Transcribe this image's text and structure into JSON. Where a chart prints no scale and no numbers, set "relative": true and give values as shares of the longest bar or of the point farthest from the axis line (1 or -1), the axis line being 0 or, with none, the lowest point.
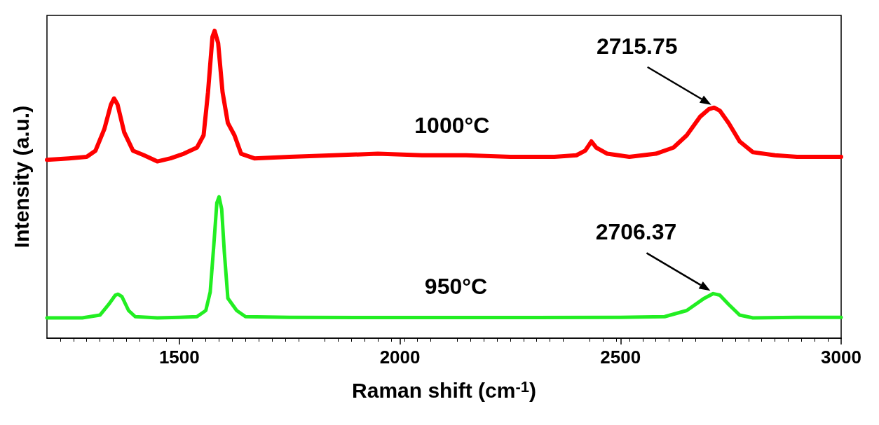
{
  "chart_data": {
    "type": "line",
    "relative": true,
    "xlabel": "Raman shift (cm$^{-1}$)",
    "ylabel": "Intensity (a.u.)",
    "xlim": [
      1200,
      3000
    ],
    "xticks": [
      1500,
      2000,
      2500,
      3000
    ],
    "grid": false,
    "legend": false,
    "marker": "none",
    "line_style": "solid",
    "series": [
      {
        "name": "1000°C",
        "color": "#ff0000",
        "x": [
          1200,
          1250,
          1290,
          1310,
          1330,
          1345,
          1352,
          1360,
          1375,
          1395,
          1420,
          1450,
          1480,
          1510,
          1540,
          1555,
          1565,
          1575,
          1580,
          1588,
          1598,
          1610,
          1625,
          1640,
          1670,
          1750,
          1850,
          1950,
          2050,
          2150,
          2250,
          2350,
          2400,
          2420,
          2434,
          2445,
          2470,
          2520,
          2580,
          2620,
          2650,
          2680,
          2700,
          2712,
          2725,
          2745,
          2770,
          2800,
          2850,
          2900,
          2950,
          3000
        ],
        "values": [
          0.58,
          0.585,
          0.59,
          0.61,
          0.68,
          0.76,
          0.78,
          0.76,
          0.67,
          0.61,
          0.595,
          0.575,
          0.585,
          0.6,
          0.62,
          0.66,
          0.8,
          0.98,
          1.0,
          0.96,
          0.8,
          0.7,
          0.66,
          0.6,
          0.585,
          0.59,
          0.595,
          0.6,
          0.595,
          0.595,
          0.59,
          0.59,
          0.595,
          0.61,
          0.64,
          0.62,
          0.6,
          0.59,
          0.6,
          0.62,
          0.66,
          0.72,
          0.745,
          0.75,
          0.74,
          0.7,
          0.64,
          0.605,
          0.595,
          0.59,
          0.59,
          0.59
        ]
      },
      {
        "name": "950°C",
        "color": "#22ee22",
        "x": [
          1200,
          1280,
          1320,
          1340,
          1355,
          1361,
          1370,
          1385,
          1400,
          1450,
          1500,
          1540,
          1560,
          1570,
          1578,
          1585,
          1590,
          1596,
          1602,
          1610,
          1620,
          1630,
          1650,
          1750,
          2000,
          2300,
          2500,
          2600,
          2650,
          2690,
          2710,
          2725,
          2745,
          2770,
          2800,
          2900,
          3000
        ],
        "values": [
          0.066,
          0.066,
          0.075,
          0.11,
          0.14,
          0.143,
          0.135,
          0.09,
          0.07,
          0.066,
          0.068,
          0.07,
          0.09,
          0.15,
          0.3,
          0.44,
          0.46,
          0.42,
          0.28,
          0.13,
          0.11,
          0.09,
          0.07,
          0.068,
          0.067,
          0.067,
          0.068,
          0.07,
          0.09,
          0.13,
          0.145,
          0.14,
          0.11,
          0.075,
          0.066,
          0.068,
          0.068
        ]
      }
    ],
    "annotations": [
      {
        "text": "2715.75",
        "x": 2712,
        "y": 0.75
      },
      {
        "text": "2706.37",
        "x": 2710,
        "y": 0.145
      }
    ]
  }
}
